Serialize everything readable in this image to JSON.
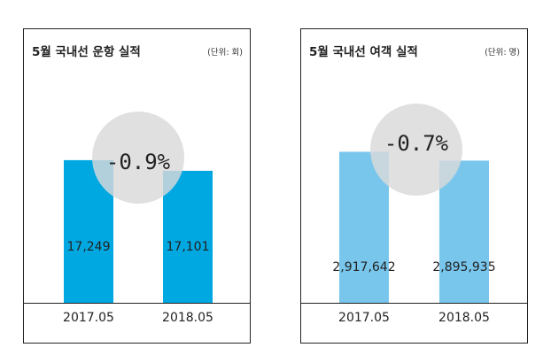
{
  "chart_data": [
    {
      "type": "bar",
      "title": "5월 국내선 운항 실적",
      "unit": "(단위: 회)",
      "categories": [
        "2017.05",
        "2018.05"
      ],
      "values": [
        17249,
        17101
      ],
      "value_labels": [
        "17,249",
        "17,101"
      ],
      "change_label": "-0.9%",
      "ylim": [
        15250,
        18000
      ],
      "grid": false,
      "bar_color": "#00a8e1",
      "circle_color": "#d9d9db"
    },
    {
      "type": "bar",
      "title": "5월 국내선 여객 실적",
      "unit": "(단위: 명)",
      "categories": [
        "2017.05",
        "2018.05"
      ],
      "values": [
        2917642,
        2895935
      ],
      "value_labels": [
        "2,917,642",
        "2,895,935"
      ],
      "change_label": "-0.7%",
      "ylim": [
        2544000,
        2960000
      ],
      "grid": false,
      "bar_color": "#79c6ec",
      "circle_color": "#d9d9db"
    }
  ]
}
